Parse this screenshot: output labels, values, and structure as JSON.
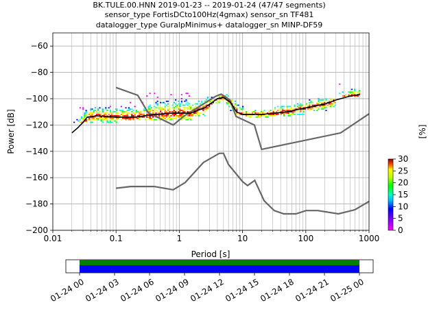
{
  "title_lines": [
    "BK.TULE.00.HNN   2019-01-23 -- 2019-01-24  (47/47 segments)",
    "sensor_type FortisDCto100Hz(4gmax) sensor_sn TF481",
    "datalogger_type GuralpMinimus+ datalogger_sn MINP-DF59"
  ],
  "chart_data": {
    "type": "heatmap",
    "xlabel": "Period [s]",
    "ylabel": "Power [dB]",
    "xscale": "log",
    "xlim": [
      0.01,
      1000
    ],
    "ylim": [
      -200,
      -50
    ],
    "xticks": [
      0.01,
      0.1,
      1,
      10,
      100,
      1000
    ],
    "xtick_labels": [
      "0.01",
      "0.1",
      "1",
      "10",
      "100",
      "1000"
    ],
    "yticks": [
      -200,
      -180,
      -160,
      -140,
      -120,
      -100,
      -80,
      -60
    ],
    "ytick_labels": [
      "−200",
      "−180",
      "−160",
      "−140",
      "−120",
      "−100",
      "−80",
      "−60"
    ],
    "grid": true,
    "colorbar": {
      "label": "[%]",
      "ticks": [
        0,
        5,
        10,
        15,
        20,
        25,
        30
      ],
      "tick_labels": [
        "0",
        "5",
        "10",
        "15",
        "20",
        "25",
        "30"
      ],
      "range": [
        0,
        30
      ]
    },
    "noise_model_high": [
      [
        0.1,
        -91.5
      ],
      [
        0.22,
        -97.4
      ],
      [
        0.32,
        -110.5
      ],
      [
        0.8,
        -120
      ],
      [
        1.2,
        -113
      ],
      [
        3.8,
        -98
      ],
      [
        4.6,
        -96.5
      ],
      [
        6.3,
        -101
      ],
      [
        7.9,
        -113.5
      ],
      [
        15.4,
        -120
      ],
      [
        20,
        -138.5
      ],
      [
        354.8,
        -126
      ],
      [
        1000,
        -111.5
      ]
    ],
    "noise_model_low": [
      [
        0.1,
        -168
      ],
      [
        0.17,
        -166.7
      ],
      [
        0.4,
        -166.7
      ],
      [
        0.8,
        -169.2
      ],
      [
        1.24,
        -163.7
      ],
      [
        2.4,
        -148.5
      ],
      [
        4.3,
        -141.5
      ],
      [
        5,
        -141.5
      ],
      [
        6,
        -150
      ],
      [
        10,
        -163
      ],
      [
        12,
        -166
      ],
      [
        15.6,
        -162.1
      ],
      [
        21.9,
        -177.5
      ],
      [
        31.6,
        -185
      ],
      [
        45,
        -187.5
      ],
      [
        70,
        -187.5
      ],
      [
        101,
        -185
      ],
      [
        154,
        -185
      ],
      [
        328,
        -187.5
      ],
      [
        600,
        -184.4
      ],
      [
        1000,
        -178
      ]
    ],
    "mean_line": [
      [
        0.02,
        -126
      ],
      [
        0.025,
        -122
      ],
      [
        0.03,
        -118
      ],
      [
        0.035,
        -114
      ],
      [
        0.05,
        -113
      ],
      [
        0.1,
        -114
      ],
      [
        0.2,
        -114
      ],
      [
        0.4,
        -112
      ],
      [
        0.8,
        -111
      ],
      [
        1.5,
        -111
      ],
      [
        2.5,
        -107
      ],
      [
        4,
        -100
      ],
      [
        5,
        -99
      ],
      [
        6.5,
        -103
      ],
      [
        8,
        -110
      ],
      [
        10,
        -112
      ],
      [
        20,
        -112
      ],
      [
        50,
        -110
      ],
      [
        100,
        -107
      ],
      [
        200,
        -104
      ],
      [
        300,
        -101
      ],
      [
        500,
        -98
      ],
      [
        700,
        -97
      ]
    ],
    "psd_bands": [
      {
        "from": 0.02,
        "to": 0.1,
        "top": -106,
        "bottom": -118
      },
      {
        "from": 0.1,
        "to": 0.3,
        "top": -102,
        "bottom": -116
      },
      {
        "from": 0.3,
        "to": 1.5,
        "top": -96,
        "bottom": -116
      },
      {
        "from": 1.5,
        "to": 3,
        "top": -99,
        "bottom": -113
      },
      {
        "from": 3,
        "to": 6,
        "top": -97,
        "bottom": -104
      },
      {
        "from": 6,
        "to": 10,
        "top": -101,
        "bottom": -112
      },
      {
        "from": 10,
        "to": 30,
        "top": -109,
        "bottom": -114
      },
      {
        "from": 30,
        "to": 100,
        "top": -104,
        "bottom": -113
      },
      {
        "from": 100,
        "to": 300,
        "top": -100,
        "bottom": -109
      },
      {
        "from": 300,
        "to": 700,
        "top": -89,
        "bottom": -98
      }
    ],
    "colors": {
      "noise_model": "#666666",
      "mean_line": "#000000",
      "grid": "#b0b0b0",
      "colormap": [
        "#ffffff",
        "#ff00ff",
        "#0000ff",
        "#00ffff",
        "#00ff00",
        "#ffff00",
        "#ff0000",
        "#800000"
      ]
    }
  },
  "timeline": {
    "tick_labels": [
      "01-24 00",
      "01-24 03",
      "01-24 06",
      "01-24 09",
      "01-24 12",
      "01-24 15",
      "01-24 18",
      "01-24 21",
      "01-25 00"
    ],
    "segments_color": "#008000",
    "coverage_color": "#0000ff"
  }
}
